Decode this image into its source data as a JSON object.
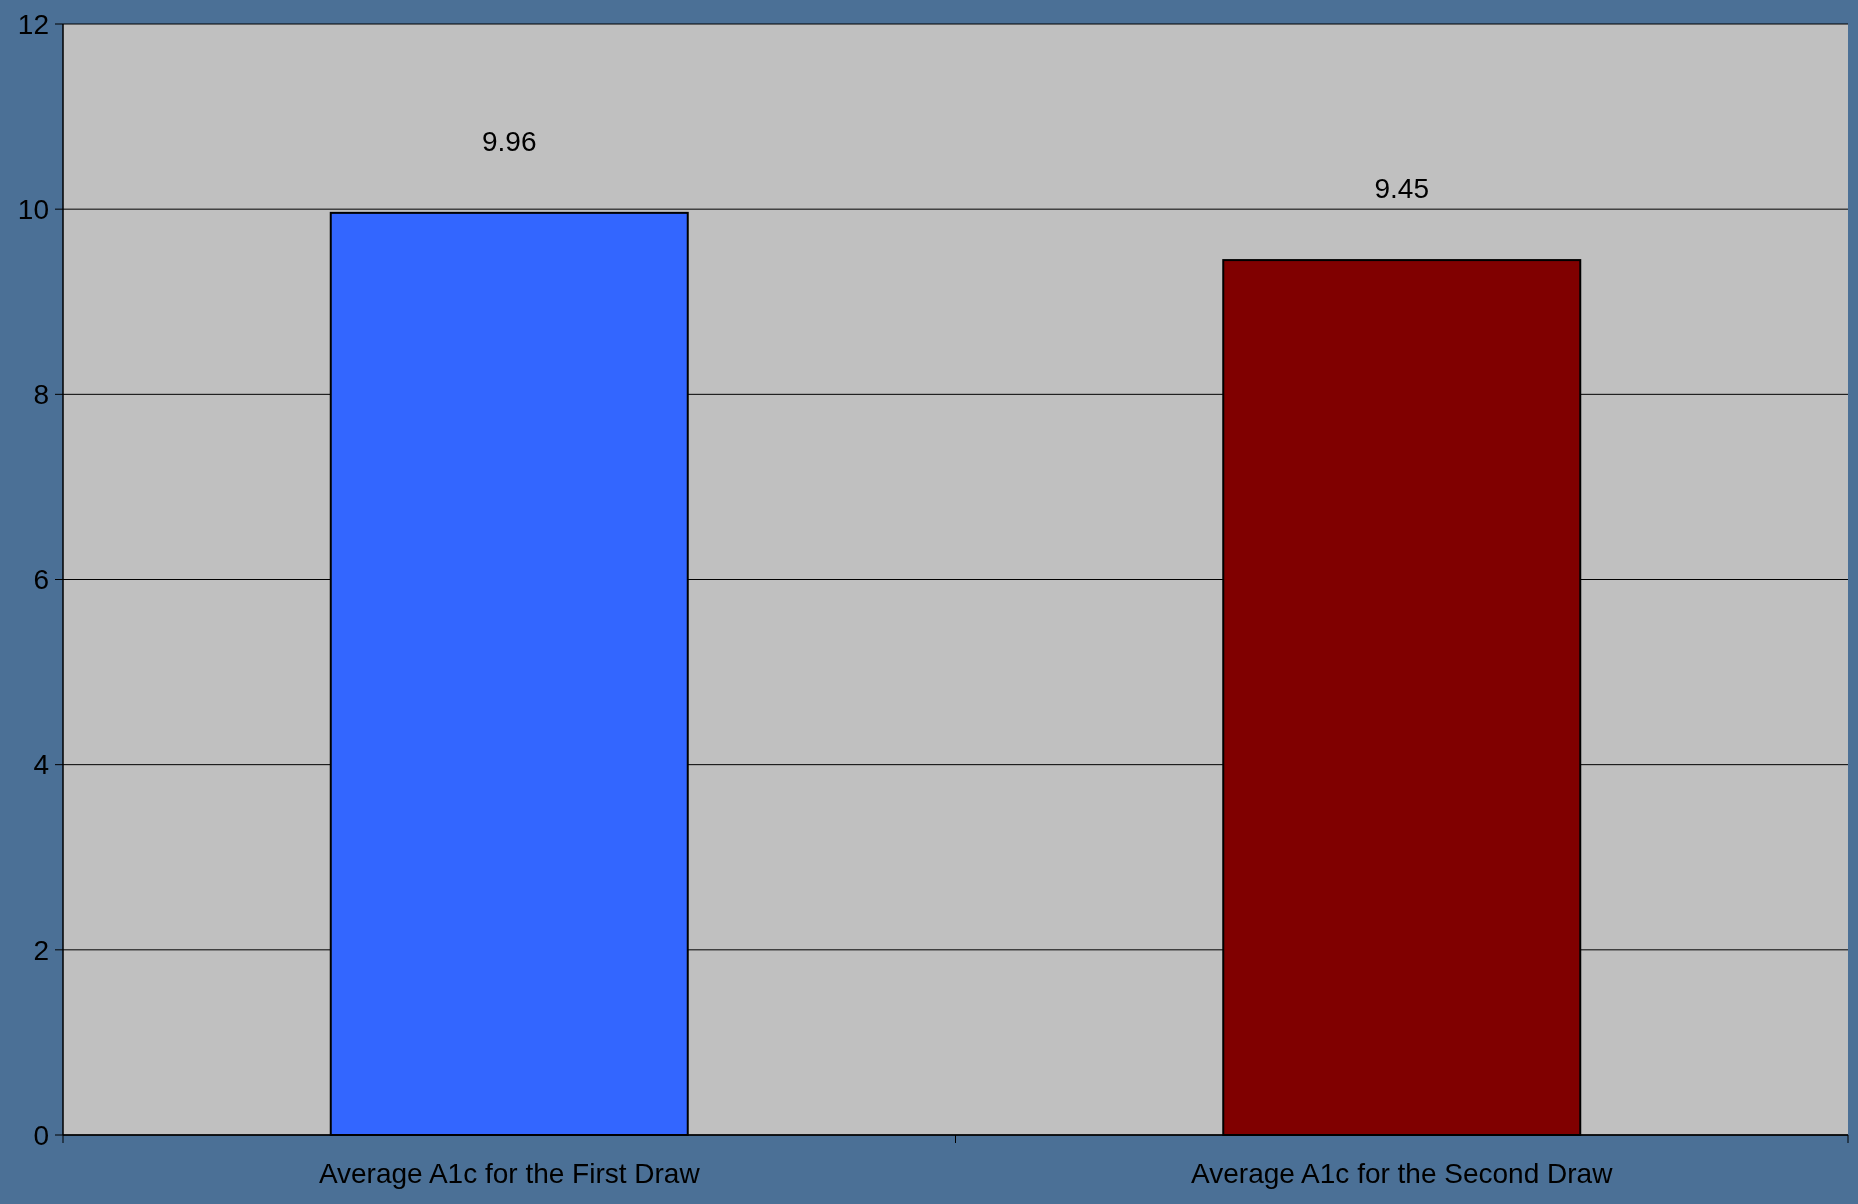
{
  "chart_data": {
    "type": "bar",
    "categories": [
      "Average A1c for the First Draw",
      "Average A1c for the Second Draw"
    ],
    "values": [
      9.96,
      9.45
    ],
    "colors": [
      "#3366ff",
      "#800000"
    ],
    "ylim": [
      0,
      12
    ],
    "yticks": [
      0,
      2,
      4,
      6,
      8,
      10,
      12
    ],
    "grid": "y",
    "data_labels": true
  }
}
